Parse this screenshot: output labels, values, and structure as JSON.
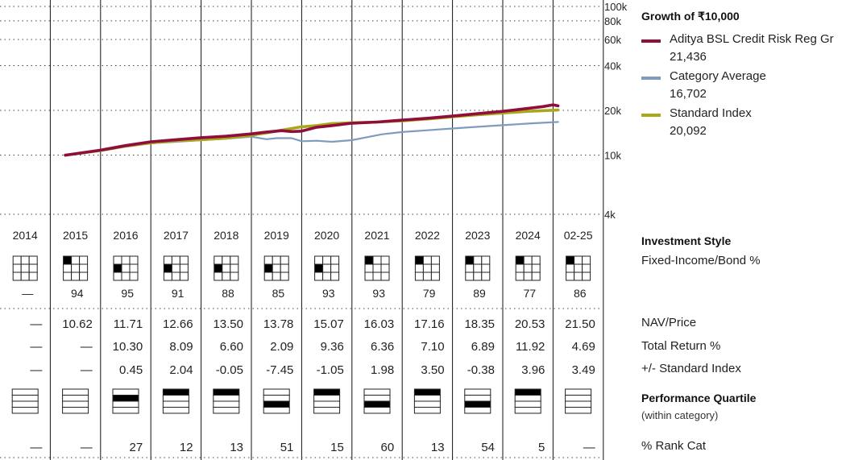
{
  "growth_title": "Growth of ₹10,000",
  "legend": [
    {
      "name": "Aditya BSL Credit Risk Reg Gr",
      "value": "21,436",
      "color": "#8f0e3b"
    },
    {
      "name": "Category Average",
      "value": "16,702",
      "color": "#7f9bbd"
    },
    {
      "name": "Standard Index",
      "value": "20,092",
      "color": "#a8a81a"
    }
  ],
  "investment_style_title": "Investment Style",
  "investment_style_sub": "Fixed-Income/Bond %",
  "performance_quartile_title": "Performance Quartile",
  "performance_quartile_sub": "(within category)",
  "row_labels": {
    "nav": "NAV/Price",
    "total_return": "Total Return %",
    "vs_index": "+/- Standard Index",
    "rank": "% Rank Cat"
  },
  "years": [
    "2014",
    "2015",
    "2016",
    "2017",
    "2018",
    "2019",
    "2020",
    "2021",
    "2022",
    "2023",
    "2024",
    "02-25"
  ],
  "style_cell": [
    null,
    [
      0,
      0
    ],
    [
      1,
      0
    ],
    [
      1,
      0
    ],
    [
      1,
      0
    ],
    [
      1,
      0
    ],
    [
      1,
      0
    ],
    [
      0,
      0
    ],
    [
      0,
      0
    ],
    [
      0,
      0
    ],
    [
      0,
      0
    ],
    [
      0,
      0
    ]
  ],
  "style_pct": [
    "—",
    "94",
    "95",
    "91",
    "88",
    "85",
    "93",
    "93",
    "79",
    "89",
    "77",
    "86"
  ],
  "nav": [
    "—",
    "10.62",
    "11.71",
    "12.66",
    "13.50",
    "13.78",
    "15.07",
    "16.03",
    "17.16",
    "18.35",
    "20.53",
    "21.50"
  ],
  "total_return": [
    "—",
    "—",
    "10.30",
    "8.09",
    "6.60",
    "2.09",
    "9.36",
    "6.36",
    "7.10",
    "6.89",
    "11.92",
    "4.69"
  ],
  "vs_index": [
    "—",
    "—",
    "0.45",
    "2.04",
    "-0.05",
    "-7.45",
    "-1.05",
    "1.98",
    "3.50",
    "-0.38",
    "3.96",
    "3.49"
  ],
  "quartile": [
    null,
    null,
    2,
    1,
    1,
    3,
    1,
    3,
    1,
    3,
    1,
    null
  ],
  "rank": [
    "—",
    "—",
    "27",
    "12",
    "13",
    "51",
    "15",
    "60",
    "13",
    "54",
    "5",
    "—"
  ],
  "chart_data": {
    "type": "line",
    "yscale": "log",
    "ylim": [
      4000,
      100000
    ],
    "y_ticks": [
      {
        "v": 100000,
        "label": "100k"
      },
      {
        "v": 80000,
        "label": "80k"
      },
      {
        "v": 60000,
        "label": "60k"
      },
      {
        "v": 40000,
        "label": "40k"
      },
      {
        "v": 20000,
        "label": "20k"
      },
      {
        "v": 10000,
        "label": "10k"
      },
      {
        "v": 4000,
        "label": "4k"
      }
    ],
    "x_range": [
      2014,
      2026.15
    ],
    "series": [
      {
        "name": "Aditya BSL Credit Risk Reg Gr",
        "color": "#8f0e3b",
        "x": [
          2015.3,
          2016,
          2016.5,
          2017,
          2017.5,
          2018,
          2018.5,
          2019,
          2019.3,
          2019.6,
          2019.8,
          2020,
          2020.3,
          2020.6,
          2021,
          2021.5,
          2022,
          2022.5,
          2023,
          2023.5,
          2024,
          2024.5,
          2024.8,
          2025.0,
          2025.1
        ],
        "y": [
          10000,
          10800,
          11600,
          12300,
          12700,
          13100,
          13400,
          13900,
          14300,
          14600,
          14400,
          14500,
          15400,
          15800,
          16400,
          16700,
          17200,
          17700,
          18300,
          19000,
          19700,
          20600,
          21200,
          21800,
          21436
        ]
      },
      {
        "name": "Category Average",
        "color": "#7f9bbd",
        "x": [
          2015.3,
          2016,
          2016.5,
          2017,
          2017.5,
          2018,
          2018.5,
          2019,
          2019.3,
          2019.5,
          2019.8,
          2020,
          2020.3,
          2020.6,
          2021,
          2021.3,
          2021.6,
          2022,
          2022.5,
          2023,
          2023.5,
          2024,
          2024.5,
          2025.1
        ],
        "y": [
          10000,
          10700,
          11400,
          12000,
          12300,
          12600,
          12900,
          13300,
          12800,
          13000,
          13000,
          12400,
          12500,
          12300,
          12600,
          13200,
          13800,
          14300,
          14700,
          15100,
          15500,
          15900,
          16300,
          16702
        ]
      },
      {
        "name": "Standard Index",
        "color": "#a8a81a",
        "x": [
          2015.3,
          2016,
          2016.5,
          2017,
          2017.5,
          2018,
          2018.5,
          2019,
          2019.3,
          2019.6,
          2019.8,
          2020,
          2020.3,
          2020.6,
          2021,
          2021.5,
          2022,
          2022.5,
          2023,
          2023.5,
          2024,
          2024.5,
          2025.1
        ],
        "y": [
          10000,
          10750,
          11500,
          12100,
          12500,
          12700,
          13000,
          13600,
          14100,
          14700,
          15100,
          15500,
          15800,
          16300,
          16500,
          16700,
          17000,
          17500,
          18100,
          18700,
          19200,
          19700,
          20092
        ]
      }
    ]
  }
}
